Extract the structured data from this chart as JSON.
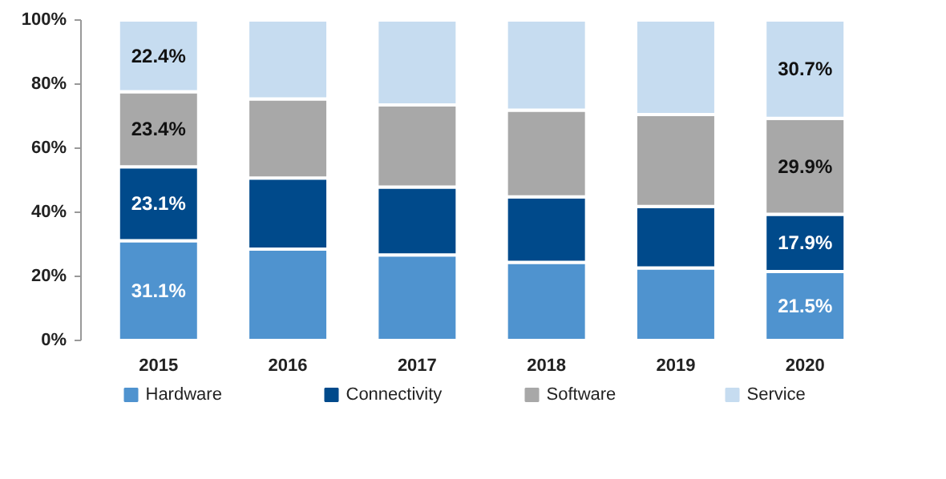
{
  "chart_data": {
    "type": "bar",
    "stacked": true,
    "categories": [
      "2015",
      "2016",
      "2017",
      "2018",
      "2019",
      "2020"
    ],
    "series": [
      {
        "name": "Hardware",
        "color": "#4f93cf",
        "values": [
          31.1,
          28.5,
          26.7,
          24.4,
          22.6,
          21.5
        ],
        "value_labels": [
          "31.1%",
          null,
          null,
          null,
          null,
          "21.5%"
        ]
      },
      {
        "name": "Connectivity",
        "color": "#004a8b",
        "values": [
          23.1,
          22.2,
          21.2,
          20.4,
          19.2,
          17.9
        ],
        "value_labels": [
          "23.1%",
          null,
          null,
          null,
          null,
          "17.9%"
        ]
      },
      {
        "name": "Software",
        "color": "#a8a8a8",
        "values": [
          23.4,
          24.7,
          25.6,
          27.1,
          28.7,
          29.9
        ],
        "value_labels": [
          "23.4%",
          null,
          null,
          null,
          null,
          "29.9%"
        ]
      },
      {
        "name": "Service",
        "color": "#c6dcf0",
        "values": [
          22.4,
          24.6,
          26.5,
          28.1,
          29.5,
          30.7
        ],
        "value_labels": [
          "22.4%",
          null,
          null,
          null,
          null,
          "30.7%"
        ]
      }
    ],
    "ylim": [
      0,
      100
    ],
    "yticks": [
      {
        "value": 0,
        "label": "0%"
      },
      {
        "value": 20,
        "label": "20%"
      },
      {
        "value": 40,
        "label": "40%"
      },
      {
        "value": 60,
        "label": "60%"
      },
      {
        "value": 80,
        "label": "80%"
      },
      {
        "value": 100,
        "label": "100%"
      }
    ],
    "grid": false,
    "legend": "bottom"
  }
}
